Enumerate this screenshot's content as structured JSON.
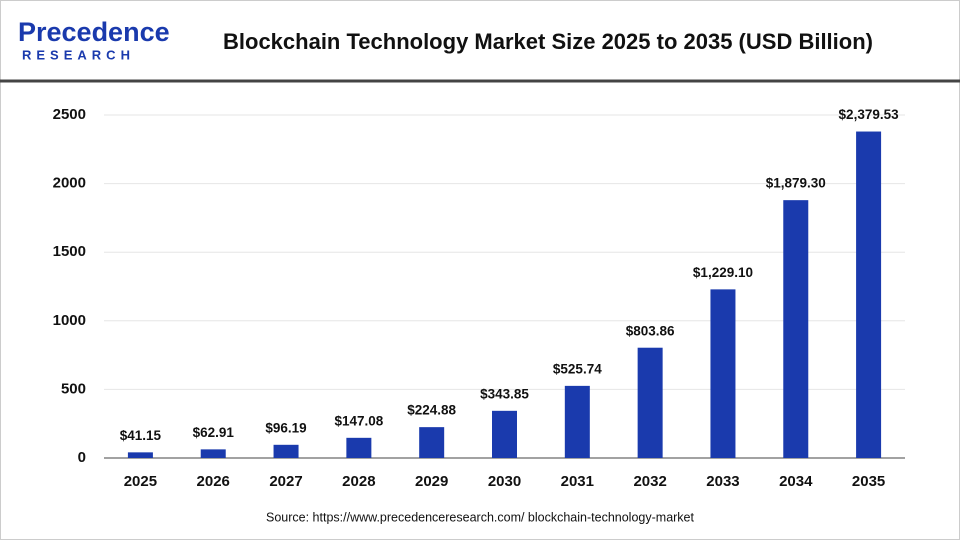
{
  "brand": {
    "name": "Precedence",
    "tagline": "RESEARCH"
  },
  "chart_data": {
    "type": "bar",
    "title": "Blockchain Technology Market Size 2025 to 2035 (USD Billion)",
    "categories": [
      "2025",
      "2026",
      "2027",
      "2028",
      "2029",
      "2030",
      "2031",
      "2032",
      "2033",
      "2034",
      "2035"
    ],
    "values": [
      41.15,
      62.91,
      96.19,
      147.08,
      224.88,
      343.85,
      525.74,
      803.86,
      1229.1,
      1879.3,
      2379.53
    ],
    "value_labels": [
      "$41.15",
      "$62.91",
      "$96.19",
      "$147.08",
      "$224.88",
      "$343.85",
      "$525.74",
      "$803.86",
      "$1,229.10",
      "$1,879.30",
      "$2,379.53"
    ],
    "color": "#1a3aad",
    "ylim": [
      0,
      2500
    ],
    "yticks": [
      0,
      500,
      1000,
      1500,
      2000,
      2500
    ],
    "grid": true,
    "source": "Source: https://www.precedenceresearch.com/ blockchain-technology-market"
  }
}
